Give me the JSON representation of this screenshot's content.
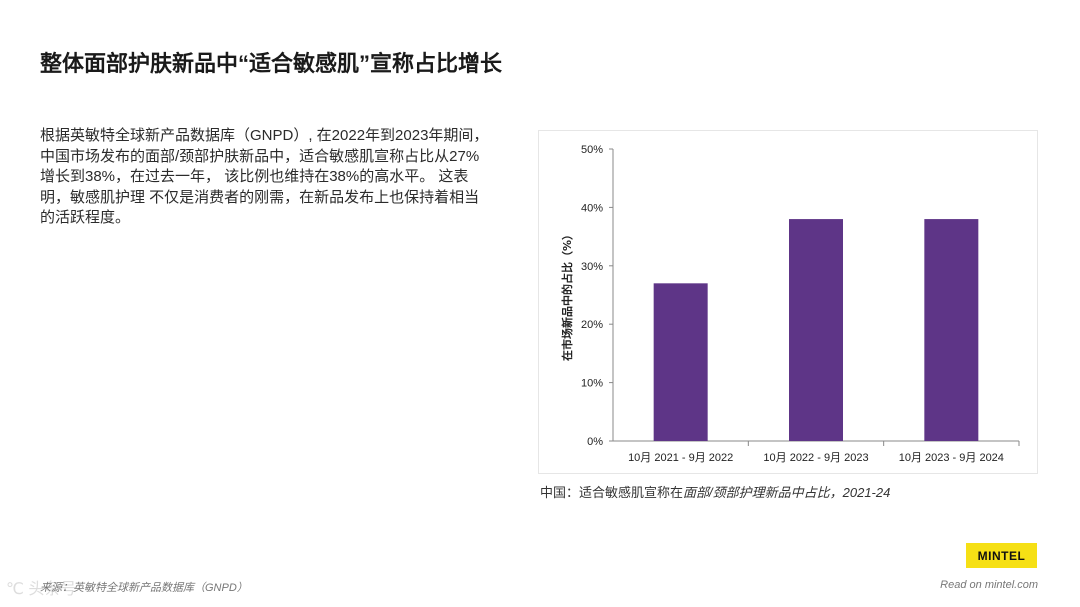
{
  "page": {
    "title": "整体面部护肤新品中“适合敏感肌”宣称占比增长",
    "body": "根据英敏特全球新产品数据库（GNPD）, 在2022年到2023年期间，中国市场发布的面部/颈部护肤新品中，适合敏感肌宣称占比从27%增长到38%，在过去一年， 该比例也维持在38%的高水平。 这表明，敏感肌护理 不仅是消费者的刚需，在新品发布上也保持着相当的活跃程度。",
    "caption_prefix": "中国：适合敏感肌宣称在",
    "caption_italic": "面部/颈部护理新品中占比，2021-24",
    "logo": "MINTEL",
    "source": "来源：英敏特全球新产品数据库（GNPD）",
    "read_on": "Read on mintel.com",
    "watermark": "℃ 头条号"
  },
  "colors": {
    "bar": "#5e3587",
    "axis": "#888888",
    "text": "#222222"
  },
  "chart_data": {
    "type": "bar",
    "title": "",
    "xlabel": "",
    "ylabel": "在市场新品中的占比（%）",
    "categories": [
      "10月 2021 - 9月 2022",
      "10月 2022 - 9月 2023",
      "10月 2023 - 9月 2024"
    ],
    "values": [
      27,
      38,
      38
    ],
    "ylim": [
      0,
      50
    ],
    "yticks": [
      0,
      10,
      20,
      30,
      40,
      50
    ],
    "ytick_labels": [
      "0%",
      "10%",
      "20%",
      "30%",
      "40%",
      "50%"
    ],
    "grid": false,
    "legend": "none"
  }
}
